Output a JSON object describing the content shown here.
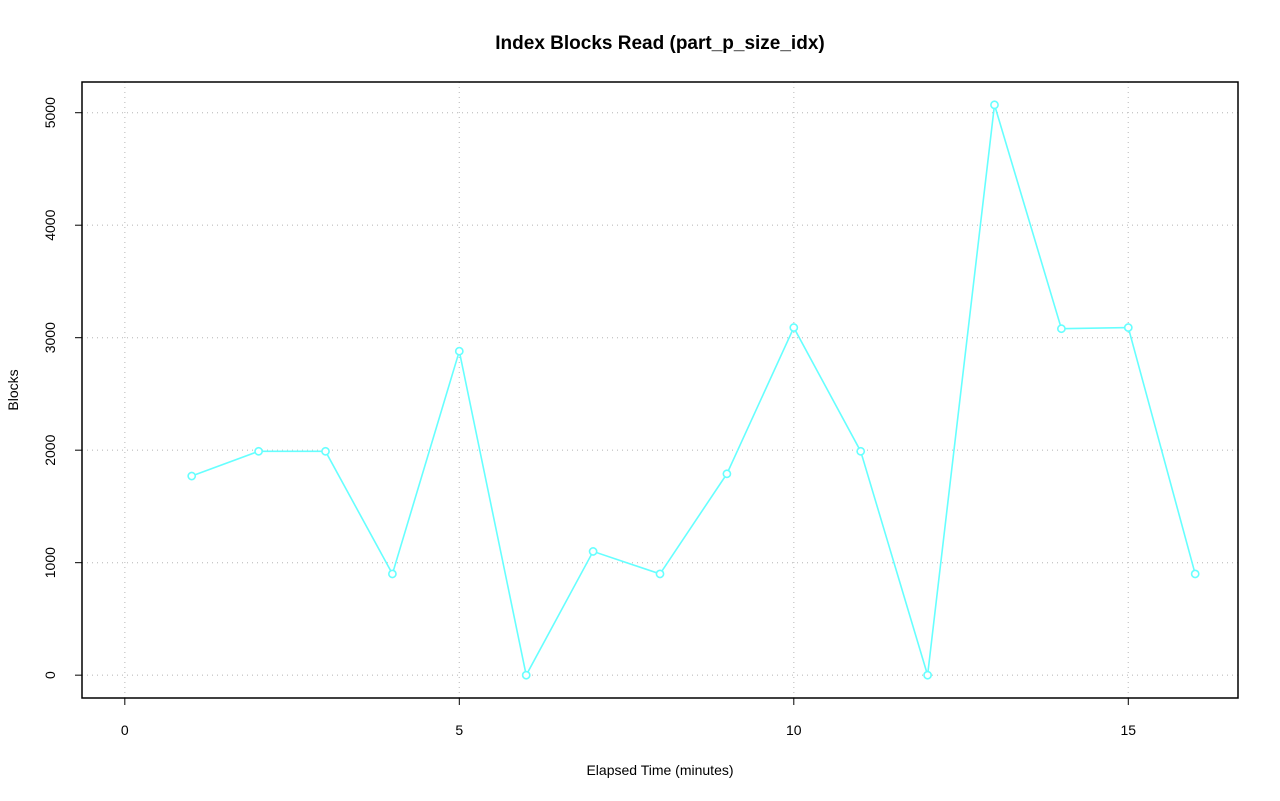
{
  "chart_data": {
    "type": "line",
    "title": "Index Blocks Read (part_p_size_idx)",
    "x_label": "Elapsed Time (minutes)",
    "y_label": "Blocks",
    "x": [
      1,
      2,
      3,
      4,
      5,
      6,
      7,
      8,
      9,
      10,
      11,
      12,
      13,
      14,
      15,
      16
    ],
    "series": [
      {
        "color": "#66ffff",
        "values": [
          1770,
          1990,
          1990,
          900,
          2880,
          0,
          1100,
          900,
          1790,
          3090,
          1990,
          0,
          5070,
          3080,
          3090,
          900
        ]
      }
    ],
    "xlim": [
      -0.64,
      16.64
    ],
    "ylim": [
      -203,
      5273
    ],
    "xticks": [
      0,
      5,
      10,
      15
    ],
    "yticks": [
      0,
      1000,
      2000,
      3000,
      4000,
      5000
    ],
    "grid": true
  }
}
